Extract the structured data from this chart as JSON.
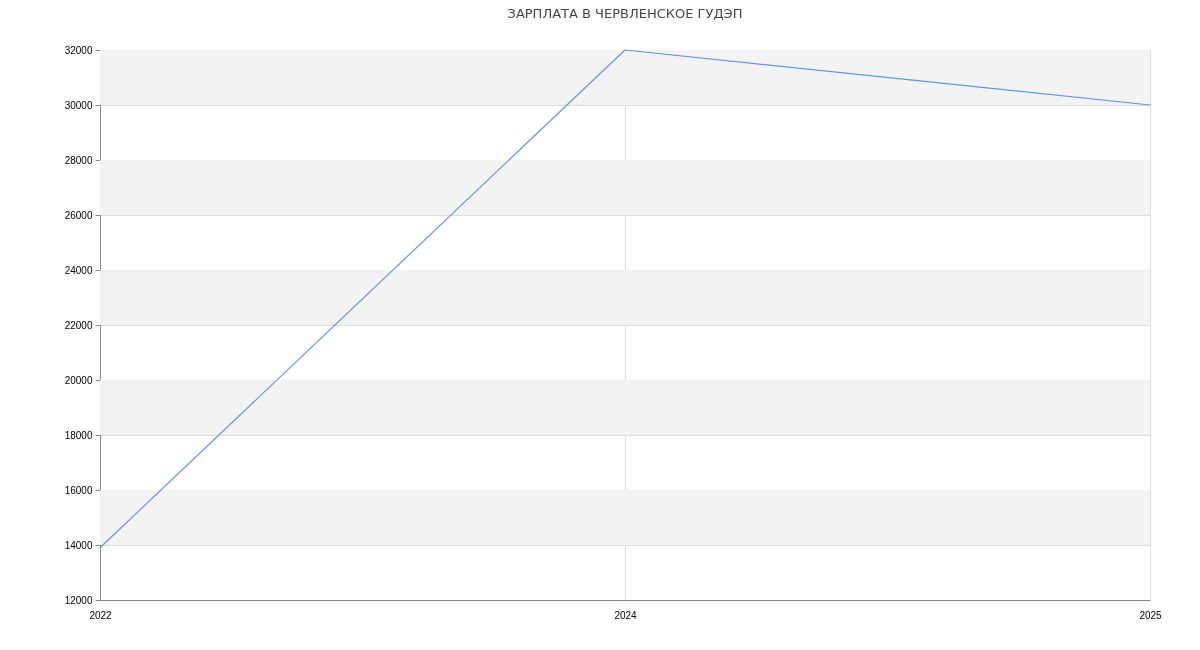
{
  "chart_data": {
    "type": "line",
    "title": "ЗАРПЛАТА В ЧЕРВЛЕНСКОЕ ГУДЭП",
    "categories": [
      "2022",
      "2024",
      "2025"
    ],
    "series": [
      {
        "color": "#6495ed",
        "values": [
          13900,
          32000,
          30000
        ]
      }
    ],
    "ylim": [
      12000,
      32000
    ],
    "yticks": [
      12000,
      14000,
      16000,
      18000,
      20000,
      22000,
      24000,
      26000,
      28000,
      30000,
      32000
    ],
    "grid": true
  }
}
